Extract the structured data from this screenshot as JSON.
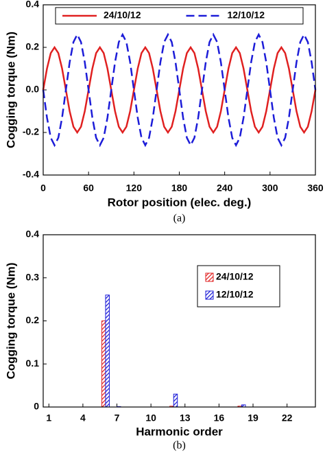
{
  "chart_data": [
    {
      "type": "line",
      "y_label": "Cogging torque (Nm)",
      "x_label": "Rotor position (elec. deg.)",
      "caption": "(a)",
      "x": [
        0,
        5,
        10,
        15,
        20,
        25,
        30,
        35,
        40,
        45,
        50,
        55,
        60,
        65,
        70,
        75,
        80,
        85,
        90,
        95,
        100,
        105,
        110,
        115,
        120,
        125,
        130,
        135,
        140,
        145,
        150,
        155,
        160,
        165,
        170,
        175,
        180,
        185,
        190,
        195,
        200,
        205,
        210,
        215,
        220,
        225,
        230,
        235,
        240,
        245,
        250,
        255,
        260,
        265,
        270,
        275,
        280,
        285,
        290,
        295,
        300,
        305,
        310,
        315,
        320,
        325,
        330,
        335,
        340,
        345,
        350,
        355,
        360
      ],
      "xlim": [
        0,
        360
      ],
      "xticks": [
        0,
        60,
        120,
        180,
        240,
        300,
        360
      ],
      "ylim": [
        -0.4,
        0.4
      ],
      "yticks": [
        -0.4,
        -0.2,
        {
          "value": 0,
          "label": "0.0"
        },
        0.2,
        0.4
      ],
      "legend": "top",
      "series": [
        {
          "name": "24/10/12",
          "color": "#e02020",
          "line_style": "solid",
          "values": [
            0,
            0.1,
            0.173,
            0.2,
            0.173,
            0.1,
            0,
            -0.1,
            -0.173,
            -0.2,
            -0.173,
            -0.1,
            0,
            0.1,
            0.173,
            0.2,
            0.173,
            0.1,
            0,
            -0.1,
            -0.173,
            -0.2,
            -0.173,
            -0.1,
            0,
            0.1,
            0.173,
            0.2,
            0.173,
            0.1,
            0,
            -0.1,
            -0.173,
            -0.2,
            -0.173,
            -0.1,
            0,
            0.1,
            0.173,
            0.2,
            0.173,
            0.1,
            0,
            -0.1,
            -0.173,
            -0.2,
            -0.173,
            -0.1,
            0,
            0.1,
            0.173,
            0.2,
            0.173,
            0.1,
            0,
            -0.1,
            -0.173,
            -0.2,
            -0.173,
            -0.1,
            0,
            0.1,
            0.173,
            0.2,
            0.173,
            0.1,
            0,
            -0.1,
            -0.173,
            -0.2,
            -0.173,
            -0.1,
            0
          ]
        },
        {
          "name": "12/10/12",
          "color": "#1c1cd8",
          "line_style": "dashed",
          "values": [
            0,
            -0.13,
            -0.225,
            -0.26,
            -0.225,
            -0.13,
            0,
            0.13,
            0.225,
            0.26,
            0.225,
            0.13,
            0,
            -0.13,
            -0.225,
            -0.26,
            -0.225,
            -0.13,
            0,
            0.13,
            0.225,
            0.26,
            0.225,
            0.13,
            0,
            -0.13,
            -0.225,
            -0.26,
            -0.225,
            -0.13,
            0,
            0.13,
            0.225,
            0.26,
            0.225,
            0.13,
            0,
            -0.13,
            -0.225,
            -0.26,
            -0.225,
            -0.13,
            0,
            0.13,
            0.225,
            0.26,
            0.225,
            0.13,
            0,
            -0.13,
            -0.225,
            -0.26,
            -0.225,
            -0.13,
            0,
            0.13,
            0.225,
            0.26,
            0.225,
            0.13,
            0,
            -0.13,
            -0.225,
            -0.26,
            -0.225,
            -0.13,
            0,
            0.13,
            0.225,
            0.26,
            0.225,
            0.13,
            0
          ]
        }
      ]
    },
    {
      "type": "bar",
      "y_label": "Cogging torque (Nm)",
      "x_label": "Harmonic order",
      "caption": "(b)",
      "x": [
        1,
        2,
        3,
        4,
        5,
        6,
        7,
        8,
        9,
        10,
        11,
        12,
        13,
        14,
        15,
        16,
        17,
        18,
        19,
        20,
        21,
        22,
        23,
        24
      ],
      "xlim": [
        0.5,
        24.5
      ],
      "xticks": [
        1,
        4,
        7,
        10,
        13,
        16,
        19,
        22
      ],
      "ylim": [
        0,
        0.4
      ],
      "yticks": [
        0,
        0.1,
        0.2,
        0.3,
        0.4
      ],
      "legend": "right",
      "series": [
        {
          "name": "24/10/12",
          "color": "#e02020",
          "values": [
            0,
            0,
            0,
            0,
            0,
            0.2,
            0,
            0,
            0,
            0,
            0,
            0.002,
            0,
            0,
            0,
            0,
            0,
            0.002,
            0,
            0,
            0,
            0,
            0,
            0
          ]
        },
        {
          "name": "12/10/12",
          "color": "#1c1cd8",
          "values": [
            0,
            0,
            0,
            0,
            0,
            0.26,
            0.001,
            0,
            0,
            0,
            0,
            0.03,
            0,
            0,
            0,
            0,
            0,
            0.005,
            0,
            0,
            0,
            0,
            0,
            0
          ]
        }
      ]
    }
  ]
}
